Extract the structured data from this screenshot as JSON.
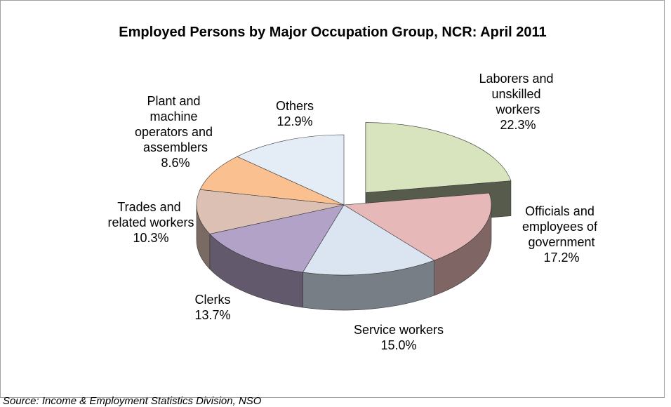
{
  "chart_data": {
    "type": "pie3d",
    "title": "Employed Persons by Major Occupation Group, NCR: April 2011",
    "categories": [
      "Laborers and unskilled workers",
      "Officials and employees of government",
      "Service workers",
      "Clerks",
      "Trades and related workers",
      "Plant and machine operators and assemblers",
      "Others"
    ],
    "values": [
      22.3,
      17.2,
      15.0,
      13.7,
      10.3,
      8.6,
      12.9
    ],
    "value_labels": [
      "22.3%",
      "17.2%",
      "15.0%",
      "13.7%",
      "10.3%",
      "8.6%",
      "12.9%"
    ],
    "colors": [
      "#d7e4bd",
      "#e6b9b8",
      "#dbe5f1",
      "#b3a2c7",
      "#dcc0b4",
      "#fac090",
      "#e4ecf5"
    ],
    "exploded": [
      0
    ],
    "source": "Source: Income & Employment Statistics Division, NSO"
  }
}
